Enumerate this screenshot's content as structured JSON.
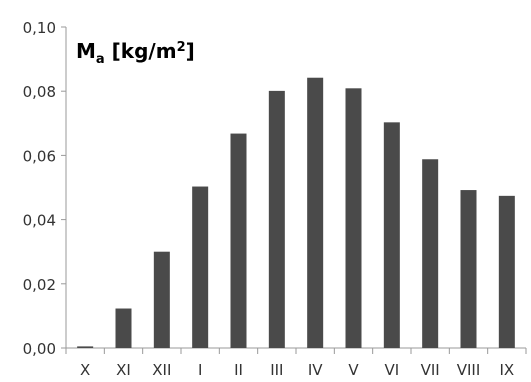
{
  "chart_data": {
    "type": "bar",
    "categories": [
      "X",
      "XI",
      "XII",
      "I",
      "II",
      "III",
      "IV",
      "V",
      "VI",
      "VII",
      "VIII",
      "IX"
    ],
    "values": [
      0.0005,
      0.0123,
      0.03,
      0.0503,
      0.0668,
      0.0801,
      0.0842,
      0.0809,
      0.0703,
      0.0588,
      0.0492,
      0.0474
    ],
    "title": {
      "main": "M",
      "sub": "a",
      "unit": " [kg/m",
      "sup": "2",
      "close": "]"
    },
    "ylim": [
      0,
      0.1
    ],
    "yticks": [
      "0,00",
      "0,02",
      "0,04",
      "0,06",
      "0,08",
      "0,10"
    ],
    "grid": false,
    "bar_color": "#4a4a4a",
    "axis_color": "#9a9a9a"
  }
}
